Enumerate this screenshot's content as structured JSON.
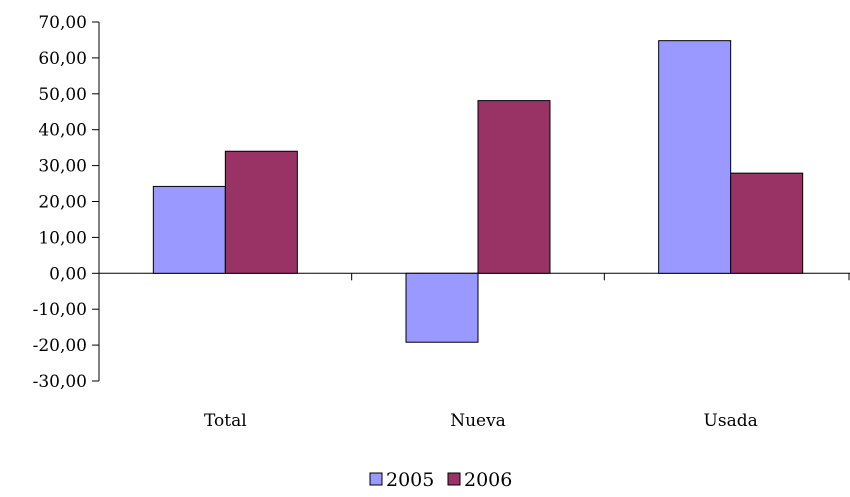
{
  "chart_data": {
    "type": "bar",
    "title": "",
    "xlabel": "",
    "ylabel": "",
    "categories": [
      "Total",
      "Nueva",
      "Usada"
    ],
    "series": [
      {
        "name": "2005",
        "values": [
          24.2,
          -19.2,
          64.8
        ],
        "color": "#9999FF"
      },
      {
        "name": "2006",
        "values": [
          34.0,
          48.1,
          27.9
        ],
        "color": "#993366"
      }
    ],
    "ylim": [
      -30,
      70
    ],
    "yticks": [
      70,
      60,
      50,
      40,
      30,
      20,
      10,
      0,
      -10,
      -20,
      -30
    ],
    "ytick_labels": [
      "70,00",
      "60,00",
      "50,00",
      "40,00",
      "30,00",
      "20,00",
      "10,00",
      "0,00",
      "-10,00",
      "-20,00",
      "-30,00"
    ],
    "grid": false,
    "legend": "bottom"
  }
}
